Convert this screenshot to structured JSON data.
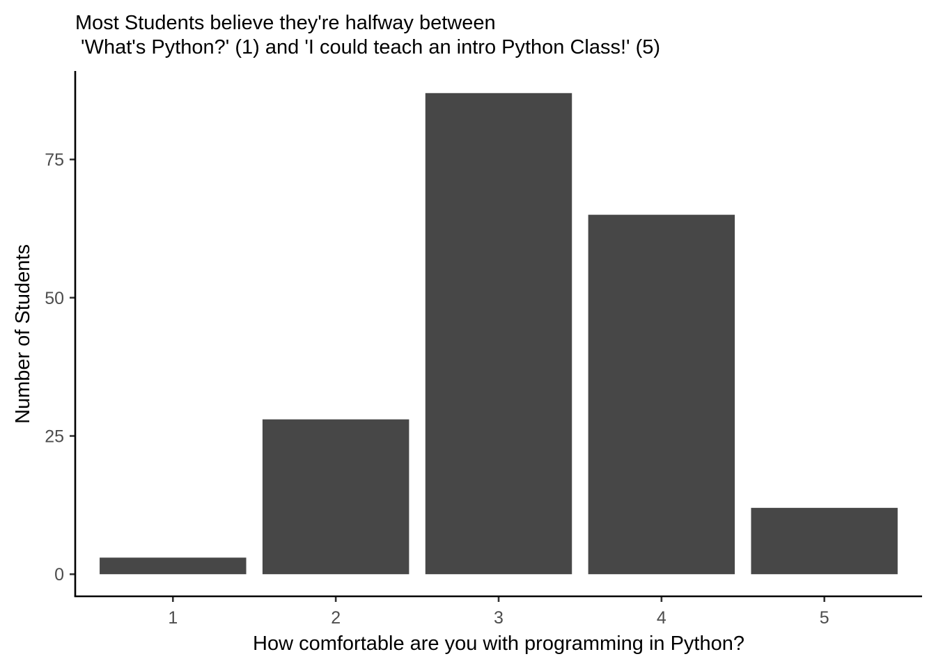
{
  "chart_data": {
    "type": "bar",
    "title_lines": [
      "Most Students believe they're halfway between",
      " 'What's Python?' (1) and 'I could teach an intro Python Class!' (5)"
    ],
    "xlabel": "How comfortable are you with programming in Python?",
    "ylabel": "Number of Students",
    "categories": [
      "1",
      "2",
      "3",
      "4",
      "5"
    ],
    "values": [
      3,
      28,
      87,
      65,
      12
    ],
    "yticks": [
      0,
      25,
      50,
      75
    ],
    "ylim": [
      -4,
      91
    ],
    "grid": false,
    "legend": "none",
    "bar_color": "#474747"
  }
}
